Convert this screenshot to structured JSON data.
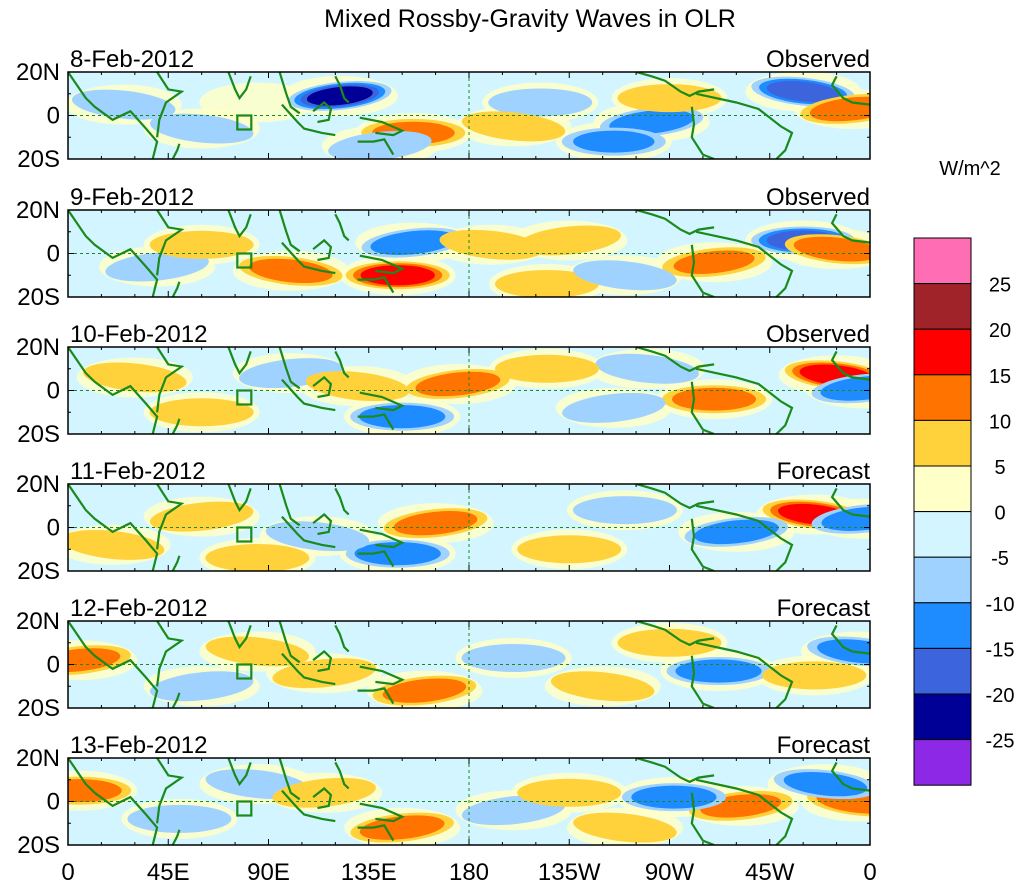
{
  "chart_data": {
    "type": "heatmap",
    "title": "Mixed Rossby-Gravity Waves in OLR",
    "units": "W/m^2",
    "x_ticks": [
      "0",
      "45E",
      "90E",
      "135E",
      "180",
      "135W",
      "90W",
      "45W",
      "0"
    ],
    "y_ticks": [
      "20N",
      "0",
      "20S"
    ],
    "lon_range": [
      0,
      360
    ],
    "lat_range": [
      -20,
      20
    ],
    "colorbar": {
      "levels": [
        "25",
        "20",
        "15",
        "10",
        "5",
        "0",
        "-5",
        "-10",
        "-15",
        "-20",
        "-25"
      ],
      "colors": [
        "#ff6eb4",
        "#a0232a",
        "#ff0000",
        "#ff7300",
        "#ffd23c",
        "#ffffc8",
        "#d2f5ff",
        "#a0d2ff",
        "#1e8cff",
        "#3c64dc",
        "#000096",
        "#8c28e6"
      ]
    },
    "panels": [
      {
        "date": "8-Feb-2012",
        "status": "Observed",
        "features": [
          {
            "lon": 122,
            "lat": 9,
            "value": -22
          },
          {
            "lon": 212,
            "lat": 6,
            "value": -7
          },
          {
            "lon": 330,
            "lat": 11,
            "value": -17
          },
          {
            "lon": 352,
            "lat": 3,
            "value": 13
          },
          {
            "lon": 155,
            "lat": -8,
            "value": 11
          },
          {
            "lon": 200,
            "lat": -5,
            "value": 7
          },
          {
            "lon": 262,
            "lat": -3,
            "value": -13
          },
          {
            "lon": 245,
            "lat": -12,
            "value": -10
          },
          {
            "lon": 60,
            "lat": -6,
            "value": -8
          },
          {
            "lon": 85,
            "lat": 6,
            "value": 4
          },
          {
            "lon": 270,
            "lat": 8,
            "value": 5
          },
          {
            "lon": 25,
            "lat": 5,
            "value": -6
          },
          {
            "lon": 140,
            "lat": -14,
            "value": -9
          }
        ]
      },
      {
        "date": "9-Feb-2012",
        "status": "Observed",
        "features": [
          {
            "lon": 155,
            "lat": 5,
            "value": -14
          },
          {
            "lon": 148,
            "lat": -10,
            "value": 18
          },
          {
            "lon": 100,
            "lat": -8,
            "value": 12
          },
          {
            "lon": 225,
            "lat": 6,
            "value": 7
          },
          {
            "lon": 330,
            "lat": 6,
            "value": -17
          },
          {
            "lon": 345,
            "lat": 2,
            "value": 14
          },
          {
            "lon": 290,
            "lat": -4,
            "value": 10
          },
          {
            "lon": 215,
            "lat": -14,
            "value": 9
          },
          {
            "lon": 190,
            "lat": 4,
            "value": 6
          },
          {
            "lon": 40,
            "lat": -6,
            "value": -6
          },
          {
            "lon": 60,
            "lat": 4,
            "value": 5
          },
          {
            "lon": 250,
            "lat": -10,
            "value": -7
          }
        ]
      },
      {
        "date": "10-Feb-2012",
        "status": "Observed",
        "features": [
          {
            "lon": 175,
            "lat": 3,
            "value": 13
          },
          {
            "lon": 150,
            "lat": -12,
            "value": -14
          },
          {
            "lon": 345,
            "lat": 7,
            "value": 18
          },
          {
            "lon": 357,
            "lat": 1,
            "value": -14
          },
          {
            "lon": 290,
            "lat": -4,
            "value": 12
          },
          {
            "lon": 260,
            "lat": 10,
            "value": -8
          },
          {
            "lon": 245,
            "lat": -8,
            "value": -7
          },
          {
            "lon": 60,
            "lat": -10,
            "value": 6
          },
          {
            "lon": 30,
            "lat": 6,
            "value": 5
          },
          {
            "lon": 100,
            "lat": 8,
            "value": -7
          },
          {
            "lon": 215,
            "lat": 10,
            "value": 5
          },
          {
            "lon": 130,
            "lat": 2,
            "value": 5
          }
        ]
      },
      {
        "date": "11-Feb-2012",
        "status": "Forecast",
        "features": [
          {
            "lon": 165,
            "lat": 2,
            "value": 12
          },
          {
            "lon": 148,
            "lat": -12,
            "value": -14
          },
          {
            "lon": 335,
            "lat": 6,
            "value": 17
          },
          {
            "lon": 300,
            "lat": -2,
            "value": -13
          },
          {
            "lon": 225,
            "lat": -10,
            "value": 8
          },
          {
            "lon": 112,
            "lat": -4,
            "value": -9
          },
          {
            "lon": 60,
            "lat": 5,
            "value": 6
          },
          {
            "lon": 85,
            "lat": -14,
            "value": 7
          },
          {
            "lon": 20,
            "lat": -8,
            "value": 6
          },
          {
            "lon": 357,
            "lat": 4,
            "value": -12
          },
          {
            "lon": 250,
            "lat": 8,
            "value": -6
          }
        ]
      },
      {
        "date": "12-Feb-2012",
        "status": "Forecast",
        "features": [
          {
            "lon": 160,
            "lat": -12,
            "value": 12
          },
          {
            "lon": 292,
            "lat": -3,
            "value": -14
          },
          {
            "lon": 355,
            "lat": 6,
            "value": -12
          },
          {
            "lon": 5,
            "lat": 2,
            "value": 11
          },
          {
            "lon": 335,
            "lat": -5,
            "value": 7
          },
          {
            "lon": 85,
            "lat": 6,
            "value": 8
          },
          {
            "lon": 115,
            "lat": -4,
            "value": 6
          },
          {
            "lon": 200,
            "lat": 3,
            "value": -9
          },
          {
            "lon": 240,
            "lat": -10,
            "value": 6
          },
          {
            "lon": 60,
            "lat": -10,
            "value": -6
          },
          {
            "lon": 270,
            "lat": 10,
            "value": 5
          }
        ]
      },
      {
        "date": "13-Feb-2012",
        "status": "Forecast",
        "features": [
          {
            "lon": 150,
            "lat": -12,
            "value": 13
          },
          {
            "lon": 5,
            "lat": 5,
            "value": 13
          },
          {
            "lon": 355,
            "lat": 0,
            "value": 13
          },
          {
            "lon": 302,
            "lat": -2,
            "value": 10
          },
          {
            "lon": 272,
            "lat": 2,
            "value": -13
          },
          {
            "lon": 340,
            "lat": 8,
            "value": -12
          },
          {
            "lon": 200,
            "lat": -4,
            "value": -8
          },
          {
            "lon": 225,
            "lat": 4,
            "value": 7
          },
          {
            "lon": 85,
            "lat": 8,
            "value": -7
          },
          {
            "lon": 115,
            "lat": 4,
            "value": 6
          },
          {
            "lon": 50,
            "lat": -8,
            "value": -6
          },
          {
            "lon": 250,
            "lat": -12,
            "value": 5
          }
        ]
      }
    ]
  }
}
